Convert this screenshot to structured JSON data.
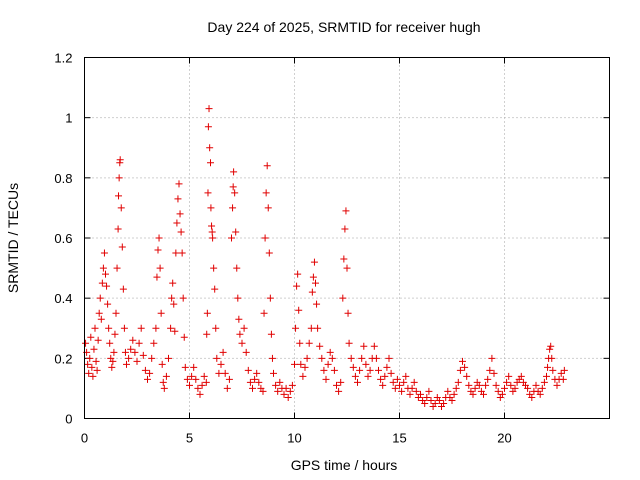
{
  "chart_data": {
    "type": "scatter",
    "title": "Day 224 of 2025, SRMTID for receiver hugh",
    "xlabel": "GPS time / hours",
    "ylabel": "SRMTID / TECUs",
    "xlim": [
      0,
      25
    ],
    "ylim": [
      0,
      1.2
    ],
    "xticks": [
      0,
      5,
      10,
      15,
      20
    ],
    "xtick_labels": [
      "0",
      "5",
      "10",
      "15",
      "20"
    ],
    "yticks": [
      0,
      0.2,
      0.4,
      0.6,
      0.8,
      1,
      1.2
    ],
    "ytick_labels": [
      "0",
      "0.2",
      "0.4",
      "0.6",
      "0.8",
      "1",
      "1.2"
    ],
    "grid": true,
    "marker": "+",
    "color": "#e00000",
    "series": [
      {
        "name": "SRMTID",
        "points": [
          [
            0.05,
            0.25
          ],
          [
            0.1,
            0.22
          ],
          [
            0.15,
            0.18
          ],
          [
            0.2,
            0.15
          ],
          [
            0.25,
            0.2
          ],
          [
            0.3,
            0.27
          ],
          [
            0.35,
            0.17
          ],
          [
            0.4,
            0.14
          ],
          [
            0.45,
            0.23
          ],
          [
            0.5,
            0.3
          ],
          [
            0.55,
            0.19
          ],
          [
            0.6,
            0.16
          ],
          [
            0.65,
            0.26
          ],
          [
            0.7,
            0.35
          ],
          [
            0.75,
            0.4
          ],
          [
            0.8,
            0.33
          ],
          [
            0.85,
            0.45
          ],
          [
            0.9,
            0.5
          ],
          [
            0.95,
            0.55
          ],
          [
            1.0,
            0.48
          ],
          [
            1.05,
            0.44
          ],
          [
            1.1,
            0.38
          ],
          [
            1.15,
            0.3
          ],
          [
            1.2,
            0.25
          ],
          [
            1.25,
            0.2
          ],
          [
            1.3,
            0.17
          ],
          [
            1.35,
            0.19
          ],
          [
            1.4,
            0.22
          ],
          [
            1.45,
            0.28
          ],
          [
            1.5,
            0.35
          ],
          [
            1.55,
            0.5
          ],
          [
            1.6,
            0.63
          ],
          [
            1.62,
            0.74
          ],
          [
            1.65,
            0.8
          ],
          [
            1.68,
            0.85
          ],
          [
            1.7,
            0.86
          ],
          [
            1.75,
            0.7
          ],
          [
            1.8,
            0.57
          ],
          [
            1.85,
            0.43
          ],
          [
            1.9,
            0.3
          ],
          [
            1.95,
            0.22
          ],
          [
            2.0,
            0.18
          ],
          [
            2.1,
            0.2
          ],
          [
            2.2,
            0.23
          ],
          [
            2.3,
            0.26
          ],
          [
            2.4,
            0.22
          ],
          [
            2.5,
            0.19
          ],
          [
            2.6,
            0.25
          ],
          [
            2.7,
            0.3
          ],
          [
            2.8,
            0.21
          ],
          [
            2.9,
            0.16
          ],
          [
            3.0,
            0.13
          ],
          [
            3.1,
            0.15
          ],
          [
            3.2,
            0.2
          ],
          [
            3.3,
            0.25
          ],
          [
            3.4,
            0.3
          ],
          [
            3.45,
            0.47
          ],
          [
            3.5,
            0.56
          ],
          [
            3.55,
            0.6
          ],
          [
            3.6,
            0.5
          ],
          [
            3.65,
            0.35
          ],
          [
            3.7,
            0.18
          ],
          [
            3.75,
            0.12
          ],
          [
            3.8,
            0.1
          ],
          [
            3.9,
            0.14
          ],
          [
            4.0,
            0.2
          ],
          [
            4.1,
            0.3
          ],
          [
            4.15,
            0.4
          ],
          [
            4.2,
            0.45
          ],
          [
            4.25,
            0.38
          ],
          [
            4.3,
            0.29
          ],
          [
            4.35,
            0.55
          ],
          [
            4.4,
            0.65
          ],
          [
            4.45,
            0.73
          ],
          [
            4.5,
            0.78
          ],
          [
            4.55,
            0.68
          ],
          [
            4.6,
            0.62
          ],
          [
            4.65,
            0.55
          ],
          [
            4.7,
            0.4
          ],
          [
            4.75,
            0.27
          ],
          [
            4.8,
            0.17
          ],
          [
            4.9,
            0.13
          ],
          [
            5.0,
            0.11
          ],
          [
            5.1,
            0.14
          ],
          [
            5.2,
            0.17
          ],
          [
            5.3,
            0.13
          ],
          [
            5.4,
            0.1
          ],
          [
            5.5,
            0.08
          ],
          [
            5.6,
            0.11
          ],
          [
            5.7,
            0.14
          ],
          [
            5.8,
            0.12
          ],
          [
            5.82,
            0.28
          ],
          [
            5.85,
            0.35
          ],
          [
            5.88,
            0.75
          ],
          [
            5.9,
            0.97
          ],
          [
            5.93,
            1.03
          ],
          [
            5.96,
            0.9
          ],
          [
            6.0,
            0.85
          ],
          [
            6.02,
            0.7
          ],
          [
            6.05,
            0.64
          ],
          [
            6.08,
            0.62
          ],
          [
            6.1,
            0.6
          ],
          [
            6.15,
            0.5
          ],
          [
            6.2,
            0.43
          ],
          [
            6.25,
            0.3
          ],
          [
            6.3,
            0.2
          ],
          [
            6.4,
            0.15
          ],
          [
            6.5,
            0.18
          ],
          [
            6.6,
            0.22
          ],
          [
            6.7,
            0.15
          ],
          [
            6.8,
            0.1
          ],
          [
            6.9,
            0.13
          ],
          [
            7.0,
            0.6
          ],
          [
            7.05,
            0.7
          ],
          [
            7.08,
            0.77
          ],
          [
            7.1,
            0.82
          ],
          [
            7.15,
            0.75
          ],
          [
            7.2,
            0.62
          ],
          [
            7.25,
            0.5
          ],
          [
            7.3,
            0.4
          ],
          [
            7.35,
            0.33
          ],
          [
            7.4,
            0.28
          ],
          [
            7.5,
            0.25
          ],
          [
            7.6,
            0.3
          ],
          [
            7.7,
            0.22
          ],
          [
            7.8,
            0.16
          ],
          [
            7.9,
            0.12
          ],
          [
            8.0,
            0.1
          ],
          [
            8.1,
            0.13
          ],
          [
            8.2,
            0.15
          ],
          [
            8.3,
            0.12
          ],
          [
            8.4,
            0.1
          ],
          [
            8.5,
            0.09
          ],
          [
            8.55,
            0.35
          ],
          [
            8.6,
            0.6
          ],
          [
            8.65,
            0.75
          ],
          [
            8.7,
            0.84
          ],
          [
            8.75,
            0.7
          ],
          [
            8.8,
            0.55
          ],
          [
            8.85,
            0.4
          ],
          [
            8.9,
            0.28
          ],
          [
            8.95,
            0.2
          ],
          [
            9.0,
            0.15
          ],
          [
            9.1,
            0.11
          ],
          [
            9.2,
            0.09
          ],
          [
            9.3,
            0.12
          ],
          [
            9.4,
            0.1
          ],
          [
            9.5,
            0.08
          ],
          [
            9.6,
            0.1
          ],
          [
            9.7,
            0.07
          ],
          [
            9.8,
            0.09
          ],
          [
            9.9,
            0.11
          ],
          [
            10.0,
            0.18
          ],
          [
            10.05,
            0.3
          ],
          [
            10.1,
            0.44
          ],
          [
            10.15,
            0.48
          ],
          [
            10.2,
            0.36
          ],
          [
            10.25,
            0.25
          ],
          [
            10.3,
            0.18
          ],
          [
            10.4,
            0.14
          ],
          [
            10.5,
            0.17
          ],
          [
            10.6,
            0.2
          ],
          [
            10.7,
            0.25
          ],
          [
            10.8,
            0.3
          ],
          [
            10.85,
            0.42
          ],
          [
            10.9,
            0.47
          ],
          [
            10.95,
            0.52
          ],
          [
            11.0,
            0.45
          ],
          [
            11.05,
            0.38
          ],
          [
            11.1,
            0.3
          ],
          [
            11.2,
            0.24
          ],
          [
            11.3,
            0.2
          ],
          [
            11.4,
            0.16
          ],
          [
            11.5,
            0.13
          ],
          [
            11.6,
            0.18
          ],
          [
            11.7,
            0.22
          ],
          [
            11.8,
            0.2
          ],
          [
            11.9,
            0.16
          ],
          [
            12.0,
            0.11
          ],
          [
            12.1,
            0.09
          ],
          [
            12.2,
            0.12
          ],
          [
            12.3,
            0.4
          ],
          [
            12.35,
            0.53
          ],
          [
            12.4,
            0.63
          ],
          [
            12.45,
            0.69
          ],
          [
            12.5,
            0.5
          ],
          [
            12.55,
            0.35
          ],
          [
            12.6,
            0.25
          ],
          [
            12.7,
            0.2
          ],
          [
            12.8,
            0.17
          ],
          [
            12.9,
            0.14
          ],
          [
            13.0,
            0.12
          ],
          [
            13.1,
            0.16
          ],
          [
            13.2,
            0.2
          ],
          [
            13.3,
            0.24
          ],
          [
            13.4,
            0.18
          ],
          [
            13.5,
            0.14
          ],
          [
            13.6,
            0.16
          ],
          [
            13.7,
            0.2
          ],
          [
            13.8,
            0.24
          ],
          [
            13.9,
            0.2
          ],
          [
            14.0,
            0.16
          ],
          [
            14.1,
            0.13
          ],
          [
            14.2,
            0.11
          ],
          [
            14.3,
            0.14
          ],
          [
            14.4,
            0.17
          ],
          [
            14.5,
            0.2
          ],
          [
            14.6,
            0.15
          ],
          [
            14.7,
            0.12
          ],
          [
            14.8,
            0.1
          ],
          [
            14.9,
            0.13
          ],
          [
            15.0,
            0.11
          ],
          [
            15.1,
            0.09
          ],
          [
            15.2,
            0.12
          ],
          [
            15.3,
            0.14
          ],
          [
            15.4,
            0.1
          ],
          [
            15.5,
            0.08
          ],
          [
            15.6,
            0.1
          ],
          [
            15.7,
            0.12
          ],
          [
            15.8,
            0.09
          ],
          [
            15.9,
            0.07
          ],
          [
            16.0,
            0.08
          ],
          [
            16.1,
            0.06
          ],
          [
            16.2,
            0.05
          ],
          [
            16.3,
            0.07
          ],
          [
            16.4,
            0.09
          ],
          [
            16.5,
            0.06
          ],
          [
            16.6,
            0.04
          ],
          [
            16.7,
            0.05
          ],
          [
            16.8,
            0.07
          ],
          [
            16.9,
            0.06
          ],
          [
            17.0,
            0.04
          ],
          [
            17.1,
            0.05
          ],
          [
            17.2,
            0.07
          ],
          [
            17.3,
            0.09
          ],
          [
            17.4,
            0.07
          ],
          [
            17.5,
            0.06
          ],
          [
            17.6,
            0.08
          ],
          [
            17.7,
            0.1
          ],
          [
            17.8,
            0.12
          ],
          [
            17.9,
            0.16
          ],
          [
            18.0,
            0.19
          ],
          [
            18.1,
            0.17
          ],
          [
            18.2,
            0.14
          ],
          [
            18.3,
            0.11
          ],
          [
            18.4,
            0.09
          ],
          [
            18.5,
            0.08
          ],
          [
            18.6,
            0.1
          ],
          [
            18.7,
            0.12
          ],
          [
            18.8,
            0.11
          ],
          [
            18.9,
            0.09
          ],
          [
            19.0,
            0.08
          ],
          [
            19.1,
            0.11
          ],
          [
            19.2,
            0.13
          ],
          [
            19.3,
            0.16
          ],
          [
            19.4,
            0.2
          ],
          [
            19.5,
            0.15
          ],
          [
            19.6,
            0.11
          ],
          [
            19.7,
            0.09
          ],
          [
            19.8,
            0.07
          ],
          [
            19.9,
            0.08
          ],
          [
            20.0,
            0.1
          ],
          [
            20.1,
            0.12
          ],
          [
            20.2,
            0.14
          ],
          [
            20.3,
            0.11
          ],
          [
            20.4,
            0.09
          ],
          [
            20.5,
            0.1
          ],
          [
            20.6,
            0.12
          ],
          [
            20.7,
            0.13
          ],
          [
            20.8,
            0.14
          ],
          [
            20.9,
            0.12
          ],
          [
            21.0,
            0.11
          ],
          [
            21.1,
            0.1
          ],
          [
            21.2,
            0.08
          ],
          [
            21.3,
            0.07
          ],
          [
            21.4,
            0.09
          ],
          [
            21.5,
            0.11
          ],
          [
            21.6,
            0.09
          ],
          [
            21.7,
            0.08
          ],
          [
            21.8,
            0.1
          ],
          [
            21.9,
            0.12
          ],
          [
            22.0,
            0.14
          ],
          [
            22.05,
            0.17
          ],
          [
            22.1,
            0.2
          ],
          [
            22.15,
            0.23
          ],
          [
            22.2,
            0.24
          ],
          [
            22.25,
            0.2
          ],
          [
            22.3,
            0.16
          ],
          [
            22.4,
            0.13
          ],
          [
            22.5,
            0.11
          ],
          [
            22.6,
            0.13
          ],
          [
            22.7,
            0.15
          ],
          [
            22.8,
            0.13
          ],
          [
            22.85,
            0.16
          ]
        ]
      }
    ]
  }
}
